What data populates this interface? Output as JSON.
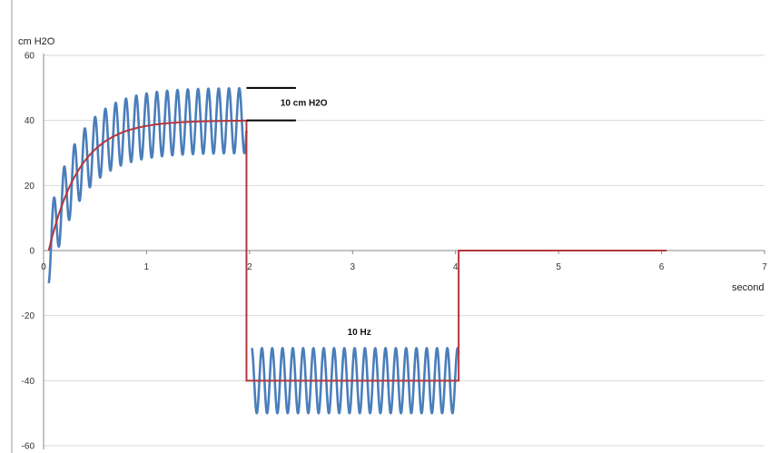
{
  "chart_data": {
    "type": "line",
    "ylabel": "cm H2O",
    "xlabel": "second",
    "xlim": [
      0,
      7
    ],
    "ylim": [
      -60,
      60
    ],
    "x_ticks": [
      0,
      1,
      2,
      3,
      4,
      5,
      6,
      7
    ],
    "y_ticks": [
      60,
      40,
      20,
      0,
      -20,
      -40,
      -60
    ],
    "grid": "horizontal",
    "series": [
      {
        "color": "#4a7ebb",
        "style": "oscillation",
        "segments": [
          {
            "x_start": 0.05,
            "x_end": 1.97,
            "center": "exponential_rise",
            "amplitude": 10,
            "frequency_hz": 10
          },
          {
            "x_start": 2.02,
            "x_end": 4.03,
            "center": -40,
            "amplitude": 10,
            "frequency_hz": 10
          }
        ]
      },
      {
        "color": "#b5373d",
        "style": "baseline",
        "points": [
          [
            0.05,
            0
          ],
          [
            0.2,
            12.8
          ],
          [
            0.4,
            24.7
          ],
          [
            0.6,
            31.8
          ],
          [
            0.8,
            35.7
          ],
          [
            1.0,
            37.9
          ],
          [
            1.2,
            39.1
          ],
          [
            1.5,
            39.7
          ],
          [
            1.97,
            40
          ],
          [
            1.97,
            -40
          ],
          [
            4.03,
            -40
          ],
          [
            4.03,
            0
          ],
          [
            6.05,
            0
          ]
        ]
      }
    ],
    "annotations": [
      {
        "text": "10 cm H2O",
        "x": 2.3,
        "y": 44.5
      },
      {
        "text": "10 Hz",
        "x": 2.95,
        "y": -26
      }
    ],
    "brackets": [
      {
        "y": 50,
        "x_start": 1.97,
        "x_end": 2.45
      },
      {
        "y": 40,
        "x_start": 1.97,
        "x_end": 2.45
      }
    ]
  }
}
